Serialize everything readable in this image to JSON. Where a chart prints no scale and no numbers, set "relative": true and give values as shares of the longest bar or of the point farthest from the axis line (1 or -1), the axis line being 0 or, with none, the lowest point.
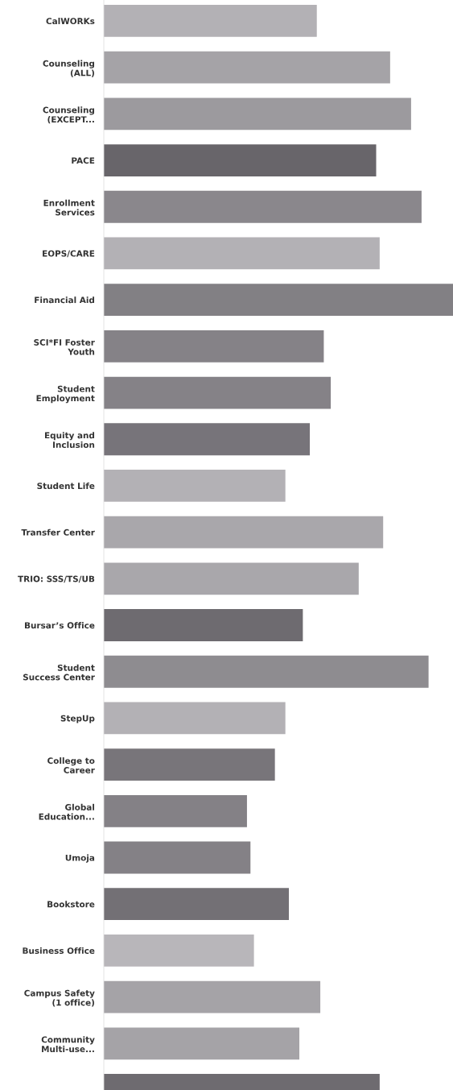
{
  "chart_data": {
    "type": "bar",
    "orientation": "horizontal",
    "relative": true,
    "categories": [
      "CalWORKs",
      "Counseling\n(ALL)",
      "Counseling\n(EXCEPT...",
      "PACE",
      "Enrollment\nServices",
      "EOPS/CARE",
      "Financial Aid",
      "SCI*FI Foster\nYouth",
      "Student\nEmployment",
      "Equity and\nInclusion",
      "Student Life",
      "Transfer Center",
      "TRIO: SSS/TS/UB",
      "Bursar’s Office",
      "Student\nSuccess Center",
      "StepUp",
      "College to\nCareer",
      "Global\nEducation...",
      "Umoja",
      "Bookstore",
      "Business Office",
      "Campus Safety\n(1 office)",
      "Community\nMulti-use...",
      null
    ],
    "values": [
      0.61,
      0.82,
      0.88,
      0.78,
      0.91,
      0.79,
      1,
      0.63,
      0.65,
      0.59,
      0.52,
      0.8,
      0.73,
      0.57,
      0.93,
      0.52,
      0.49,
      0.41,
      0.42,
      0.53,
      0.43,
      0.62,
      0.56,
      0.79
    ],
    "colors": [
      "#b3b1b5",
      "#a5a3a7",
      "#9c9a9e",
      "#68656a",
      "#8a878c",
      "#b3b1b5",
      "#828084",
      "#858287",
      "#858287",
      "#77747a",
      "#b3b1b5",
      "#a9a7ab",
      "#a9a7ab",
      "#6e6b70",
      "#8e8c90",
      "#b3b1b5",
      "#78757a",
      "#848186",
      "#848186",
      "#737075",
      "#b8b6ba",
      "#a5a3a7",
      "#a5a3a7",
      "#6e6b70"
    ]
  }
}
